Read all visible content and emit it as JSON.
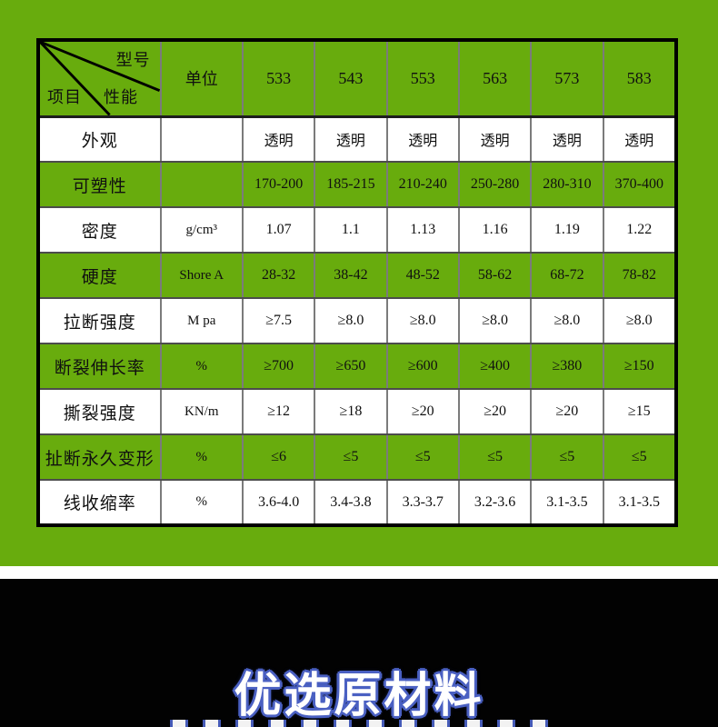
{
  "page": {
    "bg_green": "#68AC0D",
    "bg_black": "#020202",
    "divider_white": "#ffffff",
    "table_border_black": "#000000",
    "grid_line_gray": "#7b7b7b"
  },
  "table": {
    "corner": {
      "top_right_label": "型号",
      "bottom_left_label": "项目",
      "middle_label": "性能"
    },
    "columns": [
      "单位",
      "533",
      "543",
      "553",
      "563",
      "573",
      "583"
    ],
    "rows": [
      {
        "label": "外观",
        "unit": "",
        "shade": "white",
        "values": [
          "透明",
          "透明",
          "透明",
          "透明",
          "透明",
          "透明"
        ]
      },
      {
        "label": "可塑性",
        "unit": "",
        "shade": "green",
        "values": [
          "170-200",
          "185-215",
          "210-240",
          "250-280",
          "280-310",
          "370-400"
        ]
      },
      {
        "label": "密度",
        "unit": "g/cm³",
        "shade": "white",
        "values": [
          "1.07",
          "1.1",
          "1.13",
          "1.16",
          "1.19",
          "1.22"
        ]
      },
      {
        "label": "硬度",
        "unit": "Shore A",
        "shade": "green",
        "values": [
          "28-32",
          "38-42",
          "48-52",
          "58-62",
          "68-72",
          "78-82"
        ]
      },
      {
        "label": "拉断强度",
        "unit": "M pa",
        "shade": "white",
        "values": [
          "≥7.5",
          "≥8.0",
          "≥8.0",
          "≥8.0",
          "≥8.0",
          "≥8.0"
        ]
      },
      {
        "label": "断裂伸长率",
        "unit": "%",
        "shade": "green",
        "values": [
          "≥700",
          "≥650",
          "≥600",
          "≥400",
          "≥380",
          "≥150"
        ]
      },
      {
        "label": "撕裂强度",
        "unit": "KN/m",
        "shade": "white",
        "values": [
          "≥12",
          "≥18",
          "≥20",
          "≥20",
          "≥20",
          "≥15"
        ]
      },
      {
        "label": "扯断永久变形",
        "unit": "%",
        "shade": "green",
        "values": [
          "≤6",
          "≤5",
          "≤5",
          "≤5",
          "≤5",
          "≤5"
        ]
      },
      {
        "label": "线收缩率",
        "unit": "%",
        "shade": "white",
        "values": [
          "3.6-4.0",
          "3.4-3.8",
          "3.3-3.7",
          "3.2-3.6",
          "3.1-3.5",
          "3.1-3.5"
        ]
      }
    ]
  },
  "footer": {
    "headline": "优选原材料",
    "headline_text_color": "#ffffff",
    "headline_outline_color": "#4a60c2"
  }
}
